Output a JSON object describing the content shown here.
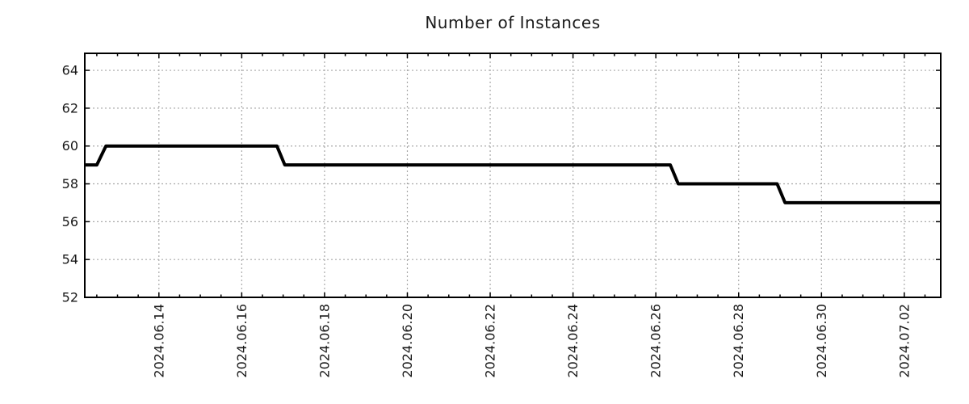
{
  "chart_data": {
    "type": "line",
    "subtype": "step",
    "title": "Number of Instances",
    "xlabel": "",
    "ylabel": "",
    "legend": null,
    "grid": true,
    "colors": {
      "line": "#000000",
      "grid": "#a8a8a8",
      "axis": "#000000",
      "text": "#1a1a1a",
      "background": "#ffffff"
    },
    "x_unit": "days since 2024-06-12 00:00",
    "xlim": [
      0.21,
      20.88
    ],
    "ylim": [
      52,
      64.9
    ],
    "y_ticks": [
      {
        "value": 52,
        "label": "52"
      },
      {
        "value": 54,
        "label": "54"
      },
      {
        "value": 56,
        "label": "56"
      },
      {
        "value": 58,
        "label": "58"
      },
      {
        "value": 60,
        "label": "60"
      },
      {
        "value": 62,
        "label": "62"
      },
      {
        "value": 64,
        "label": "64"
      }
    ],
    "x_major_ticks": [
      {
        "day": 2,
        "label": "2024.06.14"
      },
      {
        "day": 4,
        "label": "2024.06.16"
      },
      {
        "day": 6,
        "label": "2024.06.18"
      },
      {
        "day": 8,
        "label": "2024.06.20"
      },
      {
        "day": 10,
        "label": "2024.06.22"
      },
      {
        "day": 12,
        "label": "2024.06.24"
      },
      {
        "day": 14,
        "label": "2024.06.26"
      },
      {
        "day": 16,
        "label": "2024.06.28"
      },
      {
        "day": 18,
        "label": "2024.06.30"
      },
      {
        "day": 20,
        "label": "2024.07.02"
      }
    ],
    "x_minor_tick_step": 0.5,
    "series": [
      {
        "name": "instances",
        "points": [
          [
            0.21,
            59
          ],
          [
            0.5,
            59
          ],
          [
            0.72,
            60
          ],
          [
            4.85,
            60
          ],
          [
            5.04,
            59
          ],
          [
            14.35,
            59
          ],
          [
            14.54,
            58
          ],
          [
            16.93,
            58
          ],
          [
            17.12,
            57
          ],
          [
            20.88,
            57
          ]
        ]
      }
    ],
    "step_summary": [
      {
        "value": 59,
        "from": "2024.06.12 ~05:00",
        "to": "2024.06.12 ~12:00"
      },
      {
        "value": 60,
        "from": "2024.06.12 ~17:00",
        "to": "2024.06.16 ~20:00"
      },
      {
        "value": 59,
        "from": "2024.06.17 ~01:00",
        "to": "2024.06.26 ~08:00"
      },
      {
        "value": 58,
        "from": "2024.06.26 ~13:00",
        "to": "2024.06.28 ~22:00"
      },
      {
        "value": 57,
        "from": "2024.06.29 ~03:00",
        "to": "2024.07.02 ~21:00"
      }
    ]
  }
}
